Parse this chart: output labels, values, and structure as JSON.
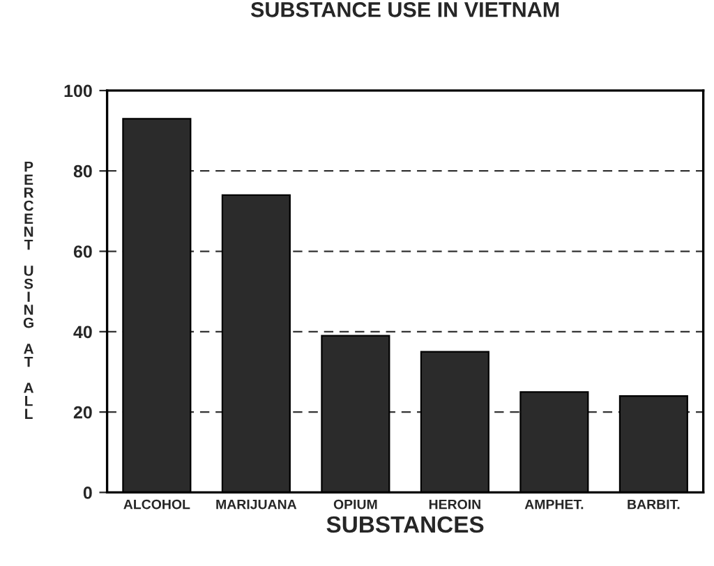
{
  "chart_data": {
    "type": "bar",
    "title": "SUBSTANCE USE IN VIETNAM",
    "xlabel": "SUBSTANCES",
    "ylabel": "PERCENT USING AT ALL",
    "categories": [
      "ALCOHOL",
      "MARIJUANA",
      "OPIUM",
      "HEROIN",
      "AMPHET.",
      "BARBIT."
    ],
    "values": [
      93,
      74,
      39,
      35,
      25,
      24
    ],
    "color": "#2b2b2b",
    "ylim": [
      0,
      100
    ],
    "yticks": [
      0,
      20,
      40,
      60,
      80,
      100
    ],
    "grid": "y"
  }
}
